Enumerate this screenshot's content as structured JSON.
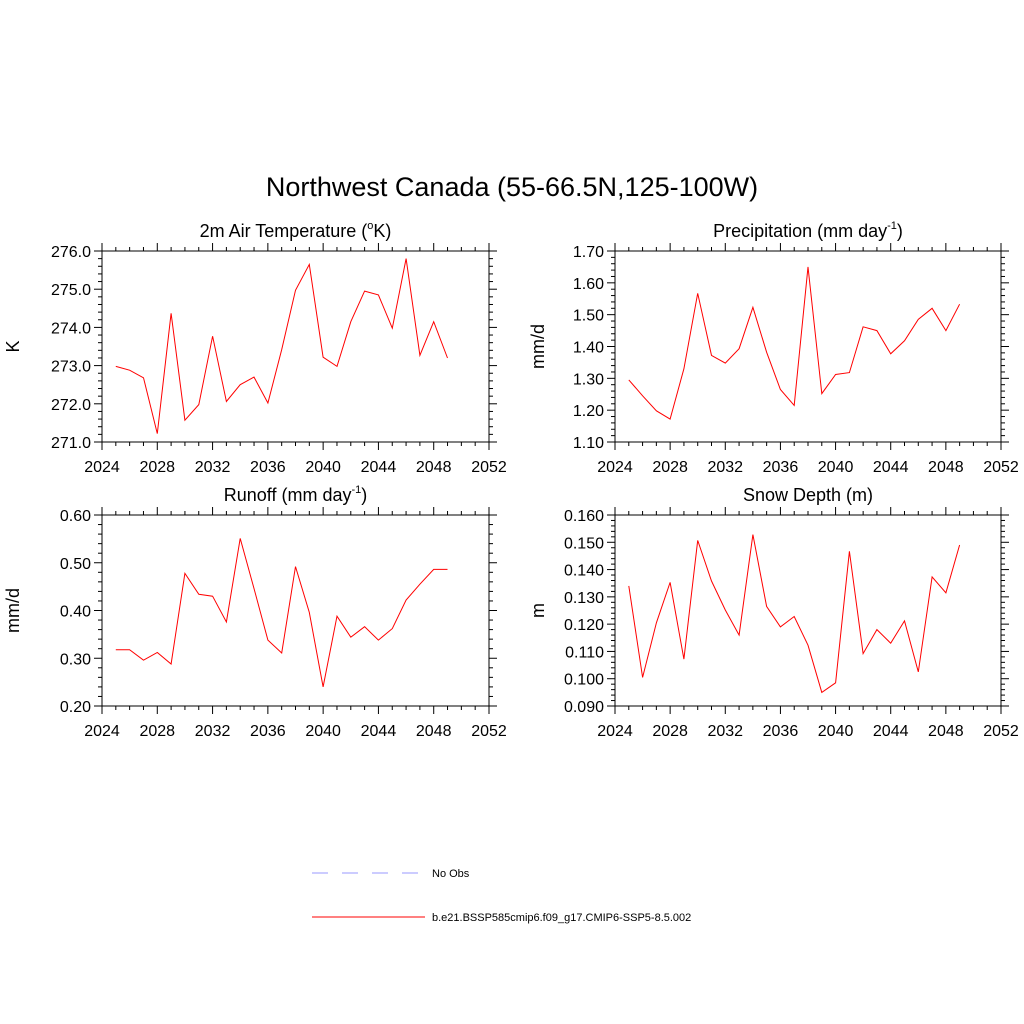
{
  "title": "Northwest Canada (55-66.5N,125-100W)",
  "legend": [
    {
      "label": "No Obs",
      "color": "#9999ff",
      "dash": true
    },
    {
      "label": "b.e21.BSSP585cmip6.f09_g17.CMIP6-SSP5-8.5.002",
      "color": "#ff0000",
      "dash": false
    }
  ],
  "chart_data": [
    {
      "type": "line",
      "title_main": "2m Air Temperature (",
      "title_sup": "o",
      "title_rest": "K)",
      "ylabel": "K",
      "xlim": [
        2024,
        2052
      ],
      "xticks": [
        "2024",
        "2028",
        "2032",
        "2036",
        "2040",
        "2044",
        "2048",
        "2052"
      ],
      "ylim": [
        271.0,
        276.0
      ],
      "yticks": [
        "271.0",
        "272.0",
        "273.0",
        "274.0",
        "275.0",
        "276.0"
      ],
      "color": "#ff0000",
      "x": [
        2025,
        2026,
        2027,
        2028,
        2029,
        2030,
        2031,
        2032,
        2033,
        2034,
        2035,
        2036,
        2037,
        2038,
        2039,
        2040,
        2041,
        2042,
        2043,
        2044,
        2045,
        2046,
        2047,
        2048,
        2049
      ],
      "values": [
        272.98,
        272.88,
        272.68,
        271.22,
        274.37,
        271.57,
        271.98,
        273.77,
        272.06,
        272.5,
        272.7,
        272.02,
        273.42,
        274.97,
        275.65,
        273.22,
        272.98,
        274.15,
        274.95,
        274.85,
        273.98,
        275.8,
        273.27,
        274.15,
        273.2
      ]
    },
    {
      "type": "line",
      "title_main": "Precipitation (mm day",
      "title_sup": "-1",
      "title_rest": ")",
      "ylabel": "mm/d",
      "xlim": [
        2024,
        2052
      ],
      "xticks": [
        "2024",
        "2028",
        "2032",
        "2036",
        "2040",
        "2044",
        "2048",
        "2052"
      ],
      "ylim": [
        1.1,
        1.7
      ],
      "yticks": [
        "1.10",
        "1.20",
        "1.30",
        "1.40",
        "1.50",
        "1.60",
        "1.70"
      ],
      "color": "#ff0000",
      "x": [
        2025,
        2026,
        2027,
        2028,
        2029,
        2030,
        2031,
        2032,
        2033,
        2034,
        2035,
        2036,
        2037,
        2038,
        2039,
        2040,
        2041,
        2042,
        2043,
        2044,
        2045,
        2046,
        2047,
        2048,
        2049
      ],
      "values": [
        1.295,
        1.245,
        1.198,
        1.172,
        1.33,
        1.567,
        1.372,
        1.348,
        1.393,
        1.523,
        1.382,
        1.265,
        1.215,
        1.65,
        1.252,
        1.312,
        1.318,
        1.462,
        1.45,
        1.377,
        1.418,
        1.485,
        1.52,
        1.45,
        1.533
      ]
    },
    {
      "type": "line",
      "title_main": "Runoff (mm day",
      "title_sup": "-1",
      "title_rest": ")",
      "ylabel": "mm/d",
      "xlim": [
        2024,
        2052
      ],
      "xticks": [
        "2024",
        "2028",
        "2032",
        "2036",
        "2040",
        "2044",
        "2048",
        "2052"
      ],
      "ylim": [
        0.2,
        0.6
      ],
      "yticks": [
        "0.20",
        "0.30",
        "0.40",
        "0.50",
        "0.60"
      ],
      "color": "#ff0000",
      "x": [
        2025,
        2026,
        2027,
        2028,
        2029,
        2030,
        2031,
        2032,
        2033,
        2034,
        2035,
        2036,
        2037,
        2038,
        2039,
        2040,
        2041,
        2042,
        2043,
        2044,
        2045,
        2046,
        2047,
        2048,
        2049
      ],
      "values": [
        0.318,
        0.318,
        0.296,
        0.312,
        0.288,
        0.478,
        0.434,
        0.43,
        0.376,
        0.551,
        0.446,
        0.338,
        0.311,
        0.492,
        0.396,
        0.24,
        0.388,
        0.344,
        0.366,
        0.338,
        0.362,
        0.422,
        0.455,
        0.486,
        0.486
      ]
    },
    {
      "type": "line",
      "title_main": "Snow Depth (m)",
      "title_sup": "",
      "title_rest": "",
      "ylabel": "m",
      "xlim": [
        2024,
        2052
      ],
      "xticks": [
        "2024",
        "2028",
        "2032",
        "2036",
        "2040",
        "2044",
        "2048",
        "2052"
      ],
      "ylim": [
        0.09,
        0.16
      ],
      "yticks": [
        "0.090",
        "0.100",
        "0.110",
        "0.120",
        "0.130",
        "0.140",
        "0.150",
        "0.160"
      ],
      "color": "#ff0000",
      "x": [
        2025,
        2026,
        2027,
        2028,
        2029,
        2030,
        2031,
        2032,
        2033,
        2034,
        2035,
        2036,
        2037,
        2038,
        2039,
        2040,
        2041,
        2042,
        2043,
        2044,
        2045,
        2046,
        2047,
        2048,
        2049
      ],
      "values": [
        0.134,
        0.1005,
        0.1205,
        0.1353,
        0.1072,
        0.1507,
        0.1358,
        0.1252,
        0.116,
        0.1528,
        0.1265,
        0.119,
        0.1228,
        0.1123,
        0.095,
        0.0985,
        0.1467,
        0.1092,
        0.118,
        0.113,
        0.1212,
        0.1025,
        0.1373,
        0.1315,
        0.149
      ]
    }
  ]
}
